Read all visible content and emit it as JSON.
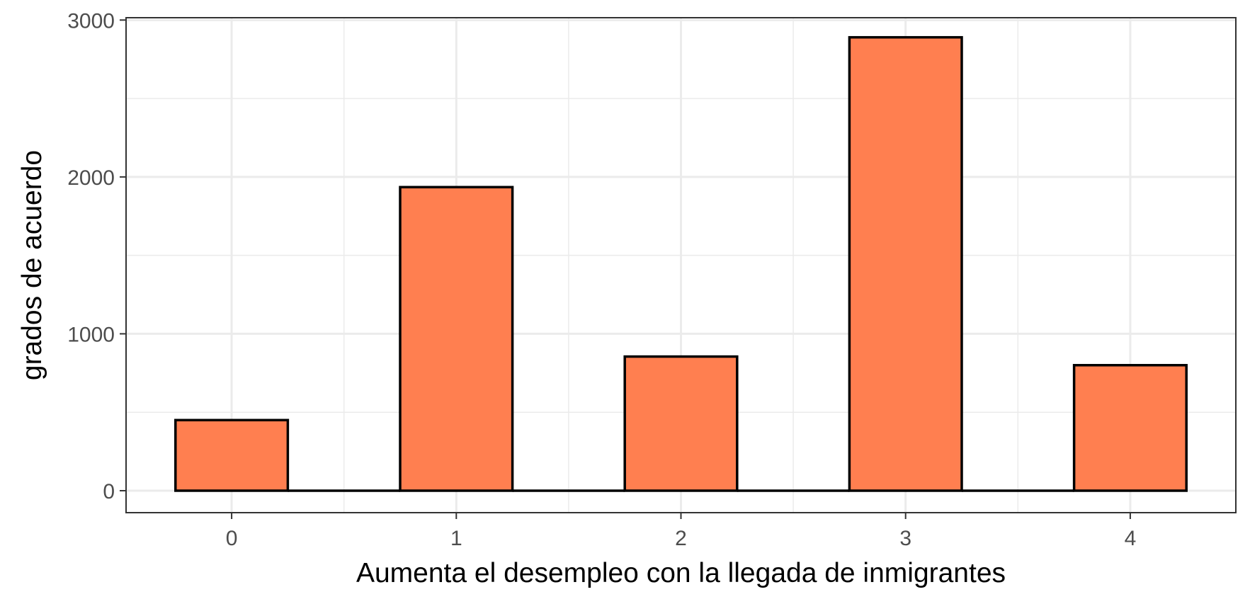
{
  "chart_data": {
    "type": "bar",
    "categories": [
      "0",
      "1",
      "2",
      "3",
      "4"
    ],
    "values": [
      450,
      1935,
      855,
      2890,
      800
    ],
    "title": "",
    "xlabel": "Aumenta el desempleo con la llegada de inmigrantes",
    "ylabel": "grados de acuerdo",
    "ylim": [
      -140,
      3015
    ],
    "yticks": [
      0,
      1000,
      2000,
      3000
    ],
    "ytick_labels": [
      "0",
      "1000",
      "2000",
      "3000"
    ],
    "xlim": [
      -0.47,
      4.47
    ],
    "xticks": [
      0,
      1,
      2,
      3,
      4
    ],
    "xtick_labels": [
      "0",
      "1",
      "2",
      "3",
      "4"
    ],
    "bar_width": 0.5,
    "grid": true,
    "bar_color": "#FF7F50",
    "bar_edge_color": "#000000"
  }
}
